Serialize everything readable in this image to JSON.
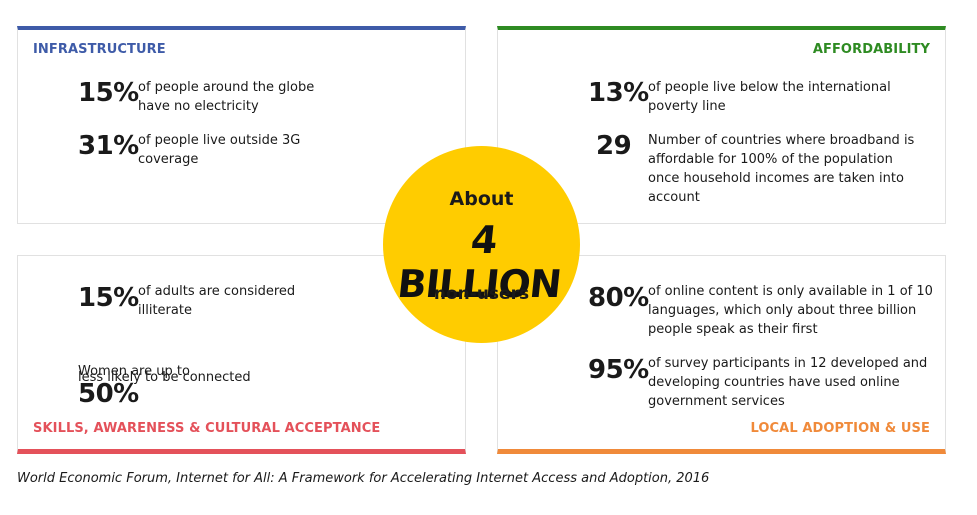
{
  "infrastructure": {
    "title": "INFRASTRUCTURE",
    "stats": [
      {
        "value": "15%",
        "text": "of people around the globe\nhave no electricity"
      },
      {
        "value": "31%",
        "text": "of people live outside 3G\ncoverage"
      }
    ]
  },
  "affordability": {
    "title": "AFFORDABILITY",
    "stats": [
      {
        "value": "13%",
        "text": "of people live below the international\npoverty line"
      },
      {
        "value": "29",
        "text": "Number of countries where broadband is\naffordable for 100% of the population\nonce household incomes are taken into\naccount"
      }
    ]
  },
  "skills": {
    "title": "SKILLS, AWARENESS & CULTURAL ACCEPTANCE",
    "stats": [
      {
        "value": "15%",
        "text": "of adults are considered\nilliterate"
      }
    ],
    "women": {
      "prefix": "Women are up to",
      "value": "50%",
      "suffix": "less likely to be connected"
    }
  },
  "local": {
    "title": "LOCAL ADOPTION & USE",
    "stats": [
      {
        "value": "80%",
        "text": "of online content is only available in 1 of 10\nlanguages, which only about three billion\npeople speak as their first"
      },
      {
        "value": "95%",
        "text": "of survey participants in 12 developed and\ndeveloping countries have used online\ngovernment services"
      }
    ]
  },
  "center": {
    "top": "About",
    "middle": "4 BILLION",
    "bottom": "non-users"
  },
  "source": "World Economic Forum, Internet for All: A Framework for Accelerating Internet Access and Adoption, 2016",
  "colors": {
    "infrastructure": "#3e5ba8",
    "affordability": "#2e8b22",
    "skills": "#e4515a",
    "local": "#f08a3a",
    "center": "#ffcc00"
  }
}
